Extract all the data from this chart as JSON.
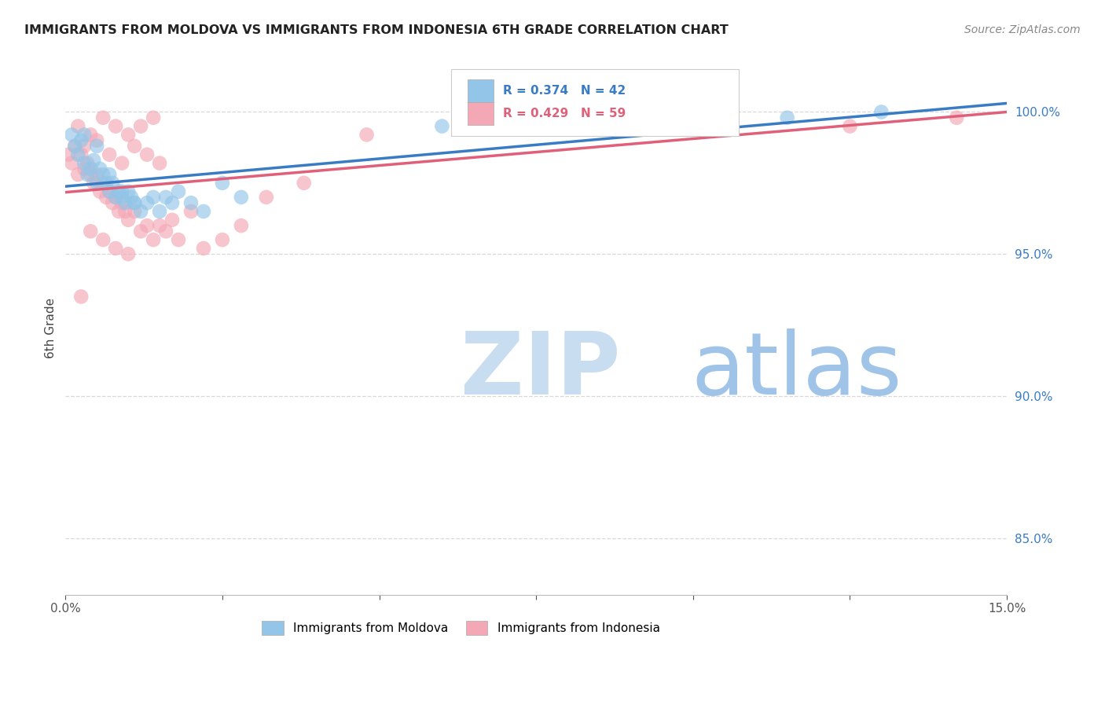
{
  "title": "IMMIGRANTS FROM MOLDOVA VS IMMIGRANTS FROM INDONESIA 6TH GRADE CORRELATION CHART",
  "source": "Source: ZipAtlas.com",
  "ylabel_label": "6th Grade",
  "ylabel_ticks": [
    100.0,
    95.0,
    90.0,
    85.0
  ],
  "ylabel_tick_labels": [
    "100.0%",
    "95.0%",
    "90.0%",
    "85.0%"
  ],
  "xlim": [
    0.0,
    15.0
  ],
  "ylim": [
    83.0,
    101.8
  ],
  "series1_label": "Immigrants from Moldova",
  "series2_label": "Immigrants from Indonesia",
  "series1_color": "#92c5e8",
  "series2_color": "#f4a7b5",
  "series1_line_color": "#3a7cc4",
  "series2_line_color": "#e0607a",
  "series1_R": 0.374,
  "series1_N": 42,
  "series2_R": 0.429,
  "series2_N": 59,
  "moldova_x": [
    0.1,
    0.15,
    0.2,
    0.25,
    0.3,
    0.35,
    0.4,
    0.45,
    0.5,
    0.55,
    0.6,
    0.65,
    0.7,
    0.75,
    0.8,
    0.85,
    0.9,
    0.95,
    1.0,
    1.05,
    1.1,
    1.2,
    1.3,
    1.4,
    1.5,
    1.6,
    1.7,
    1.8,
    2.0,
    2.2,
    2.5,
    2.8,
    0.3,
    0.5,
    0.7,
    0.9,
    1.1,
    6.0,
    7.5,
    9.5,
    11.5,
    13.0
  ],
  "moldova_y": [
    99.2,
    98.8,
    98.5,
    99.0,
    98.2,
    97.8,
    98.0,
    98.3,
    97.5,
    98.0,
    97.8,
    97.5,
    97.2,
    97.5,
    97.0,
    97.2,
    97.0,
    96.8,
    97.2,
    97.0,
    96.8,
    96.5,
    96.8,
    97.0,
    96.5,
    97.0,
    96.8,
    97.2,
    96.8,
    96.5,
    97.5,
    97.0,
    99.2,
    98.8,
    97.8,
    97.2,
    96.8,
    99.5,
    99.8,
    99.5,
    99.8,
    100.0
  ],
  "indonesia_x": [
    0.05,
    0.1,
    0.15,
    0.2,
    0.25,
    0.3,
    0.35,
    0.4,
    0.45,
    0.5,
    0.55,
    0.6,
    0.65,
    0.7,
    0.75,
    0.8,
    0.85,
    0.9,
    0.95,
    1.0,
    1.1,
    1.2,
    1.3,
    1.4,
    1.5,
    1.6,
    1.7,
    1.8,
    2.0,
    2.2,
    2.5,
    2.8,
    3.2,
    3.8,
    0.2,
    0.4,
    0.6,
    0.8,
    1.0,
    1.2,
    1.4,
    0.3,
    0.5,
    0.7,
    0.9,
    1.1,
    1.3,
    1.5,
    0.4,
    0.6,
    0.8,
    1.0,
    0.25,
    4.8,
    6.5,
    8.5,
    10.5,
    12.5,
    14.2
  ],
  "indonesia_y": [
    98.5,
    98.2,
    98.8,
    97.8,
    98.5,
    98.0,
    98.2,
    97.8,
    97.5,
    97.8,
    97.2,
    97.5,
    97.0,
    97.2,
    96.8,
    97.0,
    96.5,
    96.8,
    96.5,
    96.2,
    96.5,
    95.8,
    96.0,
    95.5,
    96.0,
    95.8,
    96.2,
    95.5,
    96.5,
    95.2,
    95.5,
    96.0,
    97.0,
    97.5,
    99.5,
    99.2,
    99.8,
    99.5,
    99.2,
    99.5,
    99.8,
    98.8,
    99.0,
    98.5,
    98.2,
    98.8,
    98.5,
    98.2,
    95.8,
    95.5,
    95.2,
    95.0,
    93.5,
    99.2,
    99.5,
    99.8,
    100.0,
    99.5,
    99.8
  ],
  "background_color": "#ffffff",
  "grid_color": "#d8d8d8",
  "watermark_zip": "ZIP",
  "watermark_atlas": "atlas",
  "watermark_color_zip": "#c8ddf0",
  "watermark_color_atlas": "#a0c4e8"
}
